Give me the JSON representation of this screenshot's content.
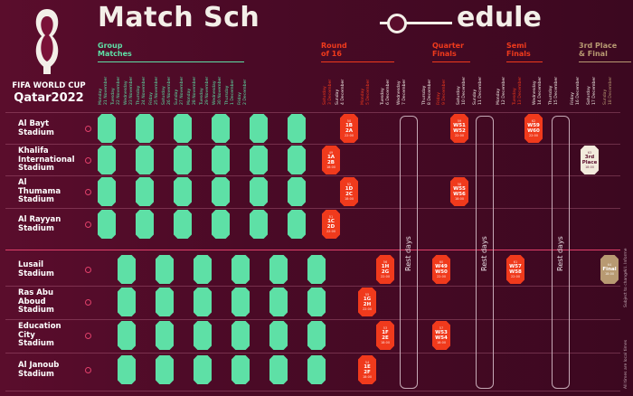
{
  "header": {
    "title_left": "Match Sch",
    "title_right": "edule",
    "logo_line1": "FIFA WORLD CUP",
    "logo_line2": "Qatar2022"
  },
  "phases": [
    {
      "label": "Group\nMatches",
      "color": "#5ee0a6"
    },
    {
      "label": "Round\nof 16",
      "color": "#f03a1c"
    },
    {
      "label": "Quarter\nFinals",
      "color": "#f03a1c"
    },
    {
      "label": "Semi\nFinals",
      "color": "#f03a1c"
    },
    {
      "label": "3rd Place\n& Final",
      "color": "#b89a72"
    }
  ],
  "days": [
    "Monday\n21 November",
    "Tuesday\n22 November",
    "Wednesday\n23 November",
    "Thursday\n24 November",
    "Friday\n25 November",
    "Saturday\n26 November",
    "Sunday\n27 November",
    "Monday\n28 November",
    "Tuesday\n29 November",
    "Wednesday\n30 November",
    "Thursday\n1 December",
    "Friday\n2 December",
    "Saturday\n3 December",
    "Sunday\n4 December",
    "Monday\n5 December",
    "Tuesday\n6 December",
    "Wednesday\n7 December",
    "Thursday\n8 December",
    "Friday\n9 December",
    "Saturday\n10 December",
    "Sunday\n11 December",
    "Monday\n12 December",
    "Tuesday\n13 December",
    "Wednesday\n14 December",
    "Thursday\n15 December",
    "Friday\n16 December",
    "Saturday\n17 December",
    "Sunday\n18 December"
  ],
  "stadiums": [
    {
      "name": "Al Bayt\nStadium"
    },
    {
      "name": "Khalifa\nInternational\nStadium"
    },
    {
      "name": "Al\nThumama\nStadium"
    },
    {
      "name": "Al Rayyan\nStadium"
    },
    {
      "name": "Lusail\nStadium"
    },
    {
      "name": "Ras Abu\nAboud\nStadium"
    },
    {
      "name": "Education\nCity\nStadium"
    },
    {
      "name": "Al Janoub\nStadium"
    }
  ],
  "knockout": {
    "r16": [
      {
        "num": "50",
        "teams": "1B\n2A",
        "time": "22:00"
      },
      {
        "num": "49",
        "teams": "1A\n2B",
        "time": "18:00"
      },
      {
        "num": "52",
        "teams": "1D\n2C",
        "time": "18:00"
      },
      {
        "num": "51",
        "teams": "1C\n2D",
        "time": "22:00"
      },
      {
        "num": "56",
        "teams": "1H\n2G",
        "time": "22:00"
      },
      {
        "num": "55",
        "teams": "1G\n2H",
        "time": "22:00"
      },
      {
        "num": "53",
        "teams": "1F\n2E",
        "time": "18:00"
      },
      {
        "num": "54",
        "teams": "1E\n2F",
        "time": "18:00"
      }
    ],
    "qf": [
      {
        "num": "59",
        "teams": "W51\nW52",
        "time": "22:00"
      },
      {
        "num": "58",
        "teams": "W55\nW56",
        "time": "18:00"
      },
      {
        "num": "60",
        "teams": "W49\nW50",
        "time": "22:00"
      },
      {
        "num": "57",
        "teams": "W53\nW54",
        "time": "18:00"
      }
    ],
    "sf": [
      {
        "num": "62",
        "teams": "W59\nW60",
        "time": "22:00"
      },
      {
        "num": "61",
        "teams": "W57\nW58",
        "time": "22:00"
      }
    ],
    "third": {
      "num": "63",
      "teams": "3rd\nPlace",
      "time": "18:00"
    },
    "final": {
      "num": "64",
      "teams": "Final",
      "time": "18:00"
    }
  },
  "rest_label": "Rest days",
  "side_notes": [
    "All times are local times",
    "Subject to change",
    "V.I. Informe"
  ],
  "colors": {
    "group": "#5ee0a6",
    "knockout": "#f03a1c",
    "final": "#b89a72",
    "background": "#4a0a26"
  }
}
